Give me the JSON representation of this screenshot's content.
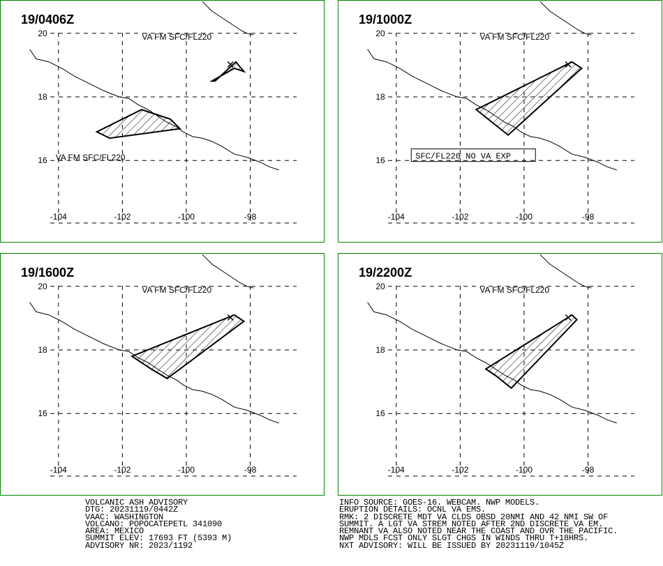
{
  "colors": {
    "frame": "#008000",
    "lines": "#000000",
    "background": "#ffffff"
  },
  "panels": [
    {
      "time": "19/0406Z",
      "lat_ticks": [
        20,
        18,
        16
      ],
      "lon_ticks": [
        -104,
        -102,
        -100,
        -98
      ],
      "labels": [
        {
          "text": "VA FM SFC/FL220",
          "lon": -100.3,
          "lat": 19.8
        },
        {
          "text": "VA FM SFC/FL220",
          "lon": -103.0,
          "lat": 16.0
        }
      ],
      "ash_polygons": [
        [
          [
            -98.45,
            19.1
          ],
          [
            -98.2,
            18.8
          ],
          [
            -98.5,
            18.9
          ],
          [
            -99.2,
            18.5
          ],
          [
            -99.1,
            18.5
          ]
        ],
        [
          [
            -101.4,
            17.6
          ],
          [
            -100.5,
            17.3
          ],
          [
            -100.2,
            17.0
          ],
          [
            -102.4,
            16.7
          ],
          [
            -102.8,
            16.9
          ]
        ]
      ],
      "no_va": null
    },
    {
      "time": "19/1000Z",
      "lat_ticks": [
        20,
        18,
        16
      ],
      "lon_ticks": [
        -104,
        -102,
        -100,
        -98
      ],
      "labels": [
        {
          "text": "VA FM SFC/FL220",
          "lon": -100.3,
          "lat": 19.8
        }
      ],
      "ash_polygons": [
        [
          [
            -98.5,
            19.1
          ],
          [
            -98.2,
            18.9
          ],
          [
            -100.5,
            16.8
          ],
          [
            -101.0,
            17.2
          ],
          [
            -101.5,
            17.6
          ]
        ]
      ],
      "no_va": {
        "text": "SFC/FL220 NO VA EXP",
        "lon": -103.4,
        "lat": 16.1
      }
    },
    {
      "time": "19/1600Z",
      "lat_ticks": [
        20,
        18,
        16
      ],
      "lon_ticks": [
        -104,
        -102,
        -100,
        -98
      ],
      "labels": [
        {
          "text": "VA FM SFC/FL220",
          "lon": -100.3,
          "lat": 19.8
        }
      ],
      "ash_polygons": [
        [
          [
            -98.5,
            19.1
          ],
          [
            -98.2,
            18.9
          ],
          [
            -100.6,
            17.1
          ],
          [
            -101.1,
            17.4
          ],
          [
            -101.7,
            17.8
          ]
        ]
      ],
      "no_va": null
    },
    {
      "time": "19/2200Z",
      "lat_ticks": [
        20,
        18,
        16
      ],
      "lon_ticks": [
        -104,
        -102,
        -100,
        -98
      ],
      "labels": [
        {
          "text": "VA FM SFC/FL220",
          "lon": -100.3,
          "lat": 19.8
        }
      ],
      "ash_polygons": [
        [
          [
            -98.5,
            19.1
          ],
          [
            -98.35,
            18.95
          ],
          [
            -100.4,
            16.8
          ],
          [
            -100.9,
            17.2
          ],
          [
            -101.2,
            17.4
          ]
        ]
      ],
      "no_va": null
    }
  ],
  "coastline": [
    [
      -104.9,
      19.5
    ],
    [
      -104.7,
      19.2
    ],
    [
      -104.3,
      19.1
    ],
    [
      -103.9,
      18.9
    ],
    [
      -103.5,
      18.65
    ],
    [
      -103.1,
      18.45
    ],
    [
      -102.6,
      18.2
    ],
    [
      -102.1,
      18.0
    ],
    [
      -101.8,
      17.95
    ],
    [
      -101.5,
      17.75
    ],
    [
      -101.2,
      17.6
    ],
    [
      -100.9,
      17.4
    ],
    [
      -100.6,
      17.2
    ],
    [
      -100.3,
      17.05
    ],
    [
      -100.1,
      16.9
    ],
    [
      -99.8,
      16.75
    ],
    [
      -99.5,
      16.7
    ],
    [
      -99.2,
      16.6
    ],
    [
      -98.9,
      16.45
    ],
    [
      -98.5,
      16.2
    ],
    [
      -98.1,
      16.1
    ],
    [
      -97.7,
      15.95
    ],
    [
      -97.4,
      15.8
    ],
    [
      -97.1,
      15.7
    ]
  ],
  "border": [
    [
      -99.5,
      21.0
    ],
    [
      -99.2,
      20.7
    ],
    [
      -98.9,
      20.5
    ],
    [
      -98.6,
      20.3
    ],
    [
      -98.3,
      20.1
    ],
    [
      -98.1,
      20.0
    ],
    [
      -97.9,
      19.95
    ]
  ],
  "advisory": {
    "left": [
      "VOLCANIC ASH ADVISORY",
      "DTG: 20231119/0442Z",
      "VAAC: WASHINGTON",
      "VOLCANO: POPOCATEPETL 341090",
      "AREA: MEXICO",
      "SUMMIT ELEV: 17693 FT (5393 M)",
      "ADVISORY NR: 2023/1192"
    ],
    "right": [
      "INFO SOURCE: GOES-16. WEBCAM. NWP MODELS.",
      "ERUPTION DETAILS: OCNL VA EMS.",
      "RMK: 2 DISCRETE MDT VA CLDS OBSD 20NMI AND 42 NMI SW OF",
      "SUMMIT. A LGT VA STREM NOTED AFTER 2ND DISCRETE VA EM.",
      "REMNANT VA ALSO NOTED NEAR THE COAST AND OVR THE PACIFIC.",
      "NWP MDLS FCST ONLY SLGT CHGS IN WINDS THRU T+18HRS.",
      "NXT ADVISORY: WILL BE ISSUED BY 20231119/1045Z"
    ]
  }
}
